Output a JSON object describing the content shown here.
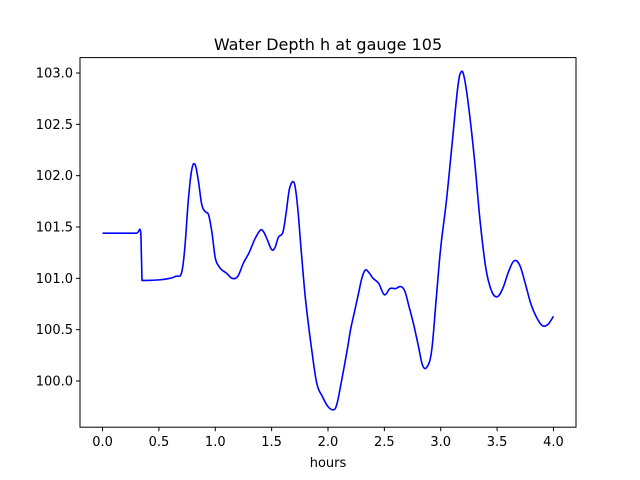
{
  "chart_data": {
    "type": "line",
    "title": "Water Depth h at gauge 105",
    "xlabel": "hours",
    "ylabel": "",
    "xlim": [
      -0.2,
      4.2
    ],
    "ylim": [
      99.55,
      103.15
    ],
    "x_ticks": [
      0.0,
      0.5,
      1.0,
      1.5,
      2.0,
      2.5,
      3.0,
      3.5,
      4.0
    ],
    "x_tick_labels": [
      "0.0",
      "0.5",
      "1.0",
      "1.5",
      "2.0",
      "2.5",
      "3.0",
      "3.5",
      "4.0"
    ],
    "y_ticks": [
      100.0,
      100.5,
      101.0,
      101.5,
      102.0,
      102.5,
      103.0
    ],
    "y_tick_labels": [
      "100.0",
      "100.5",
      "101.0",
      "101.5",
      "102.0",
      "102.5",
      "103.0"
    ],
    "grid": false,
    "line_color": "#0000ff",
    "series": [
      {
        "x": [
          0.0,
          0.1,
          0.2,
          0.3,
          0.34,
          0.35,
          0.36,
          0.4,
          0.5,
          0.6,
          0.65,
          0.7,
          0.73,
          0.76,
          0.79,
          0.82,
          0.85,
          0.88,
          0.91,
          0.94,
          0.97,
          1.0,
          1.03,
          1.06,
          1.1,
          1.15,
          1.2,
          1.25,
          1.3,
          1.35,
          1.4,
          1.43,
          1.46,
          1.5,
          1.53,
          1.56,
          1.6,
          1.63,
          1.66,
          1.7,
          1.73,
          1.76,
          1.8,
          1.85,
          1.9,
          1.95,
          2.0,
          2.05,
          2.08,
          2.12,
          2.17,
          2.2,
          2.23,
          2.27,
          2.3,
          2.33,
          2.36,
          2.4,
          2.45,
          2.5,
          2.55,
          2.6,
          2.64,
          2.68,
          2.72,
          2.76,
          2.8,
          2.84,
          2.88,
          2.92,
          2.96,
          3.0,
          3.05,
          3.1,
          3.15,
          3.18,
          3.21,
          3.25,
          3.3,
          3.35,
          3.4,
          3.45,
          3.5,
          3.55,
          3.6,
          3.65,
          3.7,
          3.75,
          3.8,
          3.85,
          3.9,
          3.95,
          4.0
        ],
        "y": [
          101.44,
          101.44,
          101.44,
          101.44,
          101.44,
          100.98,
          100.98,
          100.98,
          100.985,
          101.0,
          101.02,
          101.05,
          101.3,
          101.75,
          102.05,
          102.11,
          101.95,
          101.72,
          101.65,
          101.62,
          101.45,
          101.2,
          101.12,
          101.08,
          101.05,
          101.0,
          101.02,
          101.15,
          101.25,
          101.38,
          101.47,
          101.45,
          101.38,
          101.28,
          101.3,
          101.4,
          101.45,
          101.65,
          101.88,
          101.93,
          101.7,
          101.3,
          100.8,
          100.35,
          99.98,
          99.85,
          99.75,
          99.72,
          99.78,
          100.0,
          100.3,
          100.5,
          100.65,
          100.85,
          101.0,
          101.08,
          101.06,
          101.0,
          100.95,
          100.84,
          100.9,
          100.9,
          100.92,
          100.88,
          100.72,
          100.55,
          100.35,
          100.15,
          100.14,
          100.3,
          100.8,
          101.3,
          101.75,
          102.3,
          102.85,
          103.01,
          102.95,
          102.65,
          102.15,
          101.55,
          101.1,
          100.88,
          100.82,
          100.9,
          101.06,
          101.17,
          101.13,
          100.95,
          100.75,
          100.62,
          100.54,
          100.55,
          100.63
        ]
      }
    ]
  }
}
